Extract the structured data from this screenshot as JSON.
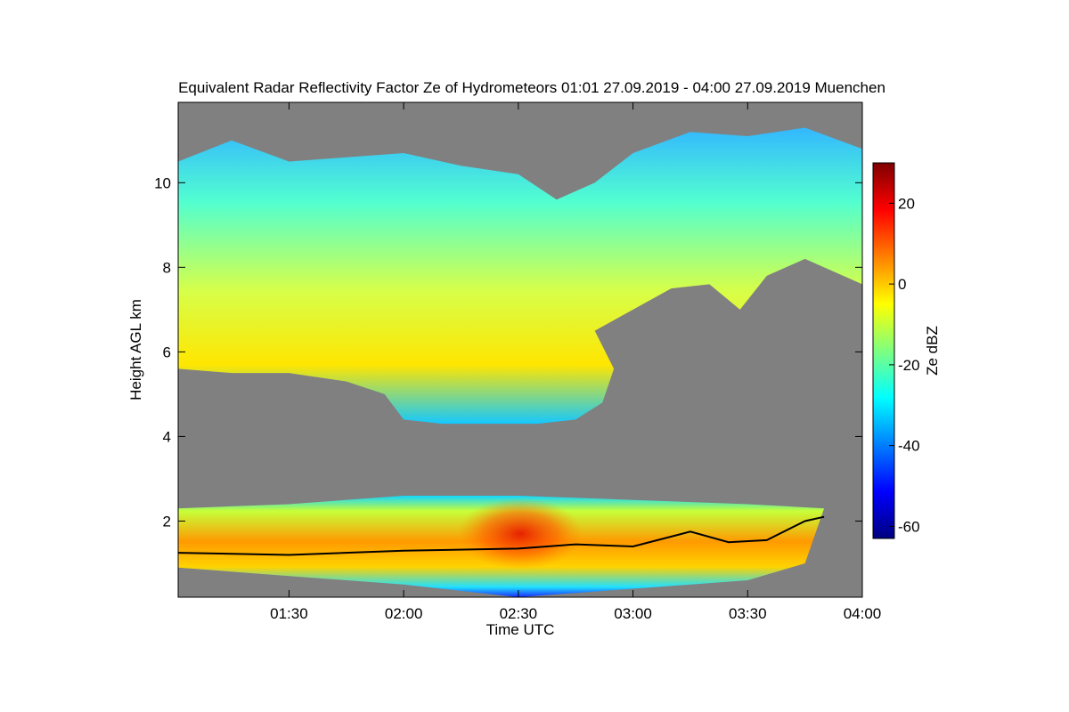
{
  "chart_data": {
    "type": "heatmap",
    "title": "Equivalent Radar Reflectivity Factor Ze of Hydrometeors   01:01 27.09.2019 - 04:00 27.09.2019 Muenchen",
    "xlabel": "Time UTC",
    "ylabel": "Height AGL km",
    "x_ticks": [
      "01:30",
      "02:00",
      "02:30",
      "03:00",
      "03:30",
      "04:00"
    ],
    "x_tick_minutes": [
      90,
      120,
      150,
      180,
      210,
      240
    ],
    "xlim_minutes": [
      61,
      240
    ],
    "y_ticks": [
      "2",
      "4",
      "6",
      "8",
      "10"
    ],
    "y_tick_values": [
      2,
      4,
      6,
      8,
      10
    ],
    "ylim": [
      0.2,
      11.9
    ],
    "colorbar": {
      "label": "Ze dBZ",
      "ticks": [
        "20",
        "0",
        "-20",
        "-40",
        "-60"
      ],
      "tick_values": [
        20,
        0,
        -20,
        -40,
        -60
      ],
      "range": [
        -63,
        30
      ]
    },
    "no_data_color": "#808080",
    "layers": [
      {
        "name_hidden": "upper ice cloud",
        "top_km": [
          [
            61,
            10.5
          ],
          [
            75,
            11.0
          ],
          [
            90,
            10.5
          ],
          [
            105,
            10.6
          ],
          [
            120,
            10.7
          ],
          [
            135,
            10.4
          ],
          [
            150,
            10.2
          ],
          [
            160,
            9.6
          ],
          [
            170,
            10.0
          ],
          [
            180,
            10.7
          ],
          [
            195,
            11.2
          ],
          [
            210,
            11.1
          ],
          [
            225,
            11.3
          ],
          [
            240,
            10.8
          ]
        ],
        "base_km": [
          [
            61,
            5.6
          ],
          [
            75,
            5.5
          ],
          [
            90,
            5.5
          ],
          [
            105,
            5.3
          ],
          [
            115,
            5.0
          ],
          [
            120,
            4.4
          ],
          [
            130,
            4.3
          ],
          [
            145,
            4.3
          ],
          [
            155,
            4.3
          ],
          [
            165,
            4.4
          ],
          [
            172,
            4.8
          ],
          [
            175,
            5.6
          ],
          [
            170,
            6.5
          ],
          [
            180,
            7.0
          ],
          [
            190,
            7.5
          ],
          [
            200,
            7.6
          ],
          [
            208,
            7.0
          ],
          [
            215,
            7.8
          ],
          [
            225,
            8.2
          ],
          [
            240,
            7.6
          ]
        ],
        "core_dbz": -5
      },
      {
        "name_hidden": "lower rain layer",
        "top_km": [
          [
            61,
            2.3
          ],
          [
            90,
            2.4
          ],
          [
            120,
            2.6
          ],
          [
            150,
            2.6
          ],
          [
            180,
            2.5
          ],
          [
            210,
            2.4
          ],
          [
            230,
            2.3
          ]
        ],
        "base_km": [
          [
            61,
            0.9
          ],
          [
            90,
            0.7
          ],
          [
            120,
            0.5
          ],
          [
            150,
            0.2
          ],
          [
            180,
            0.4
          ],
          [
            210,
            0.6
          ],
          [
            225,
            1.0
          ]
        ],
        "core_dbz": 15
      }
    ],
    "cloud_base_line_km": [
      [
        61,
        1.25
      ],
      [
        90,
        1.2
      ],
      [
        120,
        1.3
      ],
      [
        150,
        1.35
      ],
      [
        165,
        1.45
      ],
      [
        180,
        1.4
      ],
      [
        195,
        1.75
      ],
      [
        205,
        1.5
      ],
      [
        215,
        1.55
      ],
      [
        225,
        2.0
      ],
      [
        230,
        2.1
      ]
    ]
  }
}
